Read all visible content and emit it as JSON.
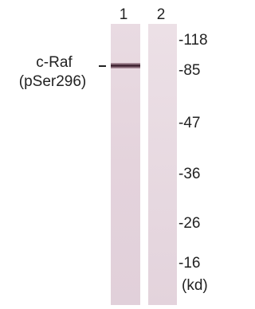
{
  "lanes": [
    {
      "label": "1"
    },
    {
      "label": "2"
    }
  ],
  "protein": {
    "name": "c-Raf",
    "modification": "(pSer296)"
  },
  "markers": [
    "-118",
    "-85",
    "-47",
    "-36",
    "-26",
    "-16"
  ],
  "unit": "(kd)"
}
